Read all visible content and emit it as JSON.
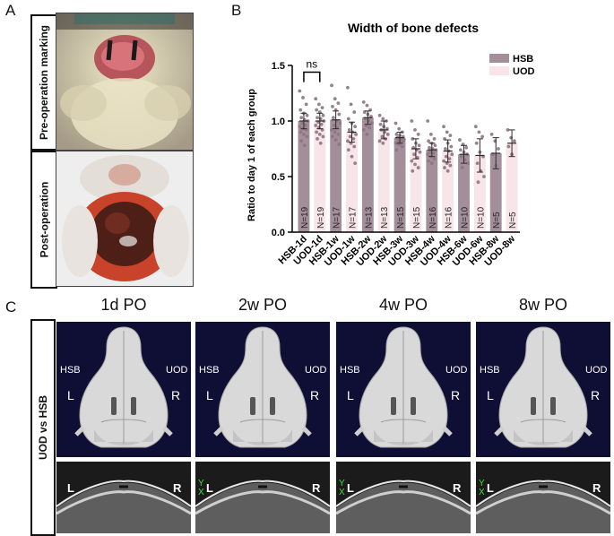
{
  "panels": {
    "a": "A",
    "b": "B",
    "c": "C"
  },
  "panel_a": {
    "top_label": "Pre-operation marking",
    "bottom_label": "Post-operation"
  },
  "colors": {
    "hsb": "#a38f9a",
    "uod": "#f7e5e9",
    "point": "#8d7581",
    "err": "#2b2b2b"
  },
  "chart_data": {
    "type": "bar",
    "title": "Width of bone defects",
    "ylabel": "Ratio to day 1 of each group",
    "ylim": [
      0,
      1.5
    ],
    "yticks": [
      "0.0",
      "0.5",
      "1.0",
      "1.5"
    ],
    "categories": [
      "HSB-1d",
      "UOD-1d",
      "HSB-1w",
      "UOD-1w",
      "HSB-2w",
      "UOD-2w",
      "HSB-3w",
      "UOD-3w",
      "HSB-4w",
      "UOD-4w",
      "HSB-6w",
      "UOD-6w",
      "HSB-8w",
      "UOD-8w"
    ],
    "groups": [
      "HSB",
      "UOD",
      "HSB",
      "UOD",
      "HSB",
      "UOD",
      "HSB",
      "UOD",
      "HSB",
      "UOD",
      "HSB",
      "UOD",
      "HSB",
      "UOD"
    ],
    "values": [
      1.0,
      1.0,
      1.01,
      0.9,
      1.03,
      0.92,
      0.85,
      0.75,
      0.74,
      0.73,
      0.7,
      0.69,
      0.71,
      0.8
    ],
    "err": [
      0.07,
      0.07,
      0.08,
      0.09,
      0.06,
      0.08,
      0.05,
      0.09,
      0.06,
      0.1,
      0.08,
      0.15,
      0.14,
      0.12
    ],
    "n_labels": [
      "N=19",
      "N=19",
      "N=17",
      "N=17",
      "N=13",
      "N=13",
      "N=15",
      "N=15",
      "N=16",
      "N=16",
      "N=10",
      "N=10",
      "N=5",
      "N=5"
    ],
    "points": [
      [
        1.27,
        1.21,
        1.15,
        1.1,
        1.07,
        1.05,
        1.03,
        1.01,
        1.0,
        0.98,
        0.96,
        0.95,
        0.93,
        0.92,
        0.9,
        0.88,
        0.86,
        0.82,
        0.78
      ],
      [
        1.2,
        1.15,
        1.12,
        1.1,
        1.08,
        1.05,
        1.03,
        1.02,
        1.0,
        0.99,
        0.97,
        0.96,
        0.94,
        0.92,
        0.9,
        0.88,
        0.86,
        0.84,
        0.8
      ],
      [
        1.32,
        1.2,
        1.16,
        1.13,
        1.1,
        1.06,
        1.03,
        1.0,
        0.98,
        0.96,
        0.94,
        0.92,
        0.9,
        0.88,
        0.86,
        0.83,
        0.79
      ],
      [
        1.3,
        1.15,
        1.08,
        1.02,
        0.98,
        0.95,
        0.92,
        0.9,
        0.88,
        0.86,
        0.84,
        0.82,
        0.8,
        0.77,
        0.74,
        0.68,
        0.62
      ],
      [
        1.17,
        1.14,
        1.1,
        1.08,
        1.06,
        1.04,
        1.02,
        1.0,
        0.98,
        0.96,
        0.94,
        0.92,
        0.88
      ],
      [
        1.05,
        1.02,
        1.0,
        0.97,
        0.95,
        0.93,
        0.92,
        0.9,
        0.88,
        0.86,
        0.84,
        0.82,
        0.8
      ],
      [
        0.98,
        0.93,
        0.9,
        0.88,
        0.87,
        0.86,
        0.85,
        0.84,
        0.83,
        0.82,
        0.81,
        0.8,
        0.79,
        0.77,
        0.74
      ],
      [
        1.0,
        0.92,
        0.88,
        0.84,
        0.8,
        0.78,
        0.76,
        0.74,
        0.72,
        0.7,
        0.67,
        0.64,
        0.61,
        0.58,
        0.55
      ],
      [
        1.0,
        0.88,
        0.84,
        0.82,
        0.8,
        0.78,
        0.76,
        0.75,
        0.74,
        0.72,
        0.71,
        0.7,
        0.68,
        0.66,
        0.64,
        0.62
      ],
      [
        0.95,
        0.9,
        0.87,
        0.84,
        0.8,
        0.77,
        0.75,
        0.73,
        0.7,
        0.68,
        0.66,
        0.64,
        0.62,
        0.6,
        0.58,
        0.55
      ],
      [
        0.83,
        0.79,
        0.76,
        0.74,
        0.72,
        0.7,
        0.68,
        0.65,
        0.62,
        0.58
      ],
      [
        0.95,
        0.9,
        0.86,
        0.8,
        0.72,
        0.68,
        0.62,
        0.55,
        0.5,
        0.45
      ],
      [
        0.88,
        0.82,
        0.75,
        0.7,
        0.6
      ],
      [
        0.92,
        0.85,
        0.82,
        0.77,
        0.7
      ]
    ],
    "legend": [
      "HSB",
      "UOD"
    ],
    "legend_position": "top-right",
    "grid": false,
    "annotation": {
      "text": "ns",
      "between": [
        "HSB-1d",
        "UOD-1d"
      ]
    }
  },
  "panel_c": {
    "row_label": "UOD vs HSB",
    "columns": [
      "1d PO",
      "2w PO",
      "4w PO",
      "8w PO"
    ],
    "hsb_label": "HSB",
    "uod_label": "UOD",
    "left_label": "L",
    "right_label": "R",
    "y_marker": "Y",
    "x_marker": "X"
  }
}
